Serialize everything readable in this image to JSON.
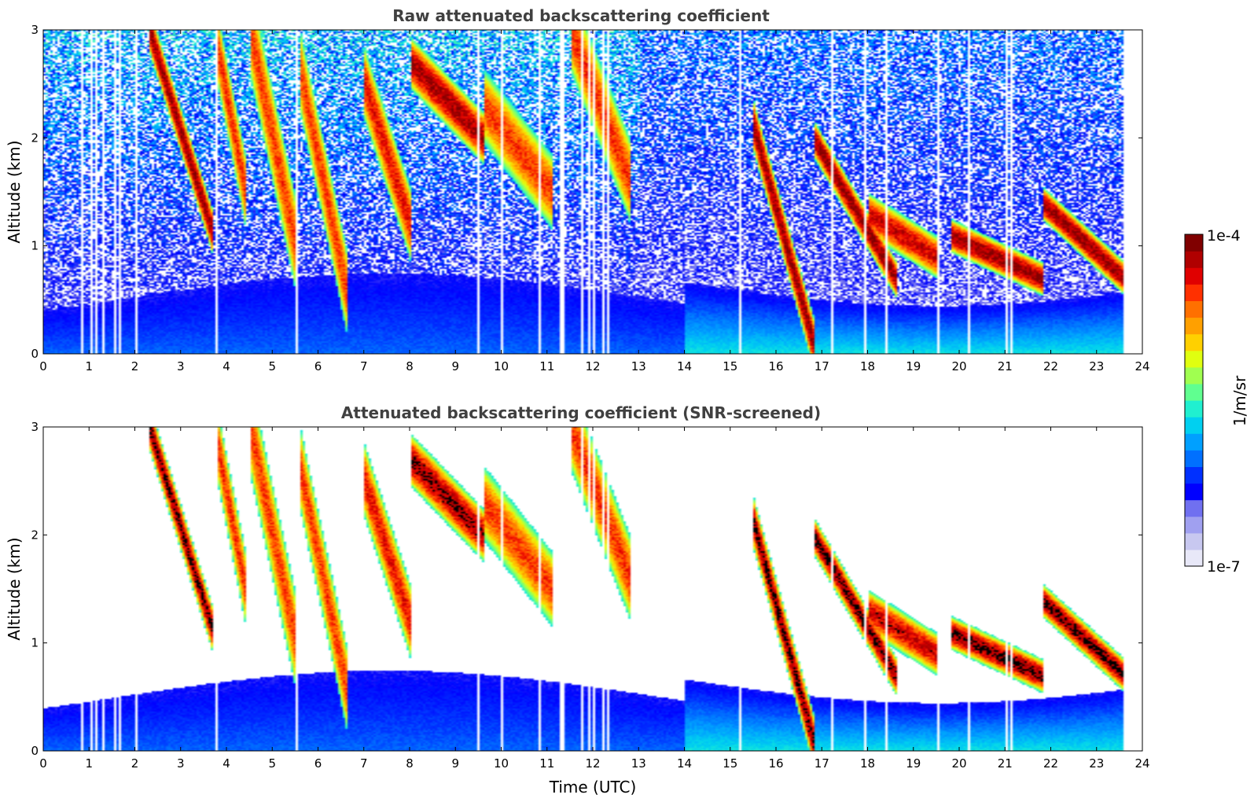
{
  "chart_data": [
    {
      "type": "heatmap",
      "title": "Raw attenuated backscattering coefficient",
      "xlabel": "",
      "ylabel": "Altitude (km)",
      "xlim": [
        0,
        24
      ],
      "ylim": [
        0,
        3
      ],
      "x_ticks": [
        "0",
        "1",
        "2",
        "3",
        "4",
        "5",
        "6",
        "7",
        "8",
        "9",
        "10",
        "11",
        "12",
        "13",
        "14",
        "15",
        "16",
        "17",
        "18",
        "19",
        "20",
        "21",
        "22",
        "23",
        "24"
      ],
      "y_ticks": [
        "0",
        "1",
        "2",
        "3"
      ],
      "screened": false
    },
    {
      "type": "heatmap",
      "title": "Attenuated backscattering coefficient (SNR-screened)",
      "xlabel": "Time (UTC)",
      "ylabel": "Altitude (km)",
      "xlim": [
        0,
        24
      ],
      "ylim": [
        0,
        3
      ],
      "x_ticks": [
        "0",
        "1",
        "2",
        "3",
        "4",
        "5",
        "6",
        "7",
        "8",
        "9",
        "10",
        "11",
        "12",
        "13",
        "14",
        "15",
        "16",
        "17",
        "18",
        "19",
        "20",
        "21",
        "22",
        "23",
        "24"
      ],
      "y_ticks": [
        "0",
        "1",
        "2",
        "3"
      ],
      "screened": true
    }
  ],
  "colorbar": {
    "label": "1/m/sr",
    "max_label": "1e-4",
    "min_label": "1e-7",
    "scale": "log",
    "range": [
      1e-07,
      0.0001
    ],
    "colors": [
      "#e8e8f8",
      "#c8c8f0",
      "#a0a0f0",
      "#7070f0",
      "#0000ff",
      "#0030ff",
      "#0070ff",
      "#00a0ff",
      "#00d0f0",
      "#20f0d0",
      "#60ff90",
      "#a0ff50",
      "#e0ff10",
      "#ffd000",
      "#ffa000",
      "#ff7000",
      "#ff3000",
      "#e00000",
      "#b00000",
      "#800000"
    ]
  }
}
